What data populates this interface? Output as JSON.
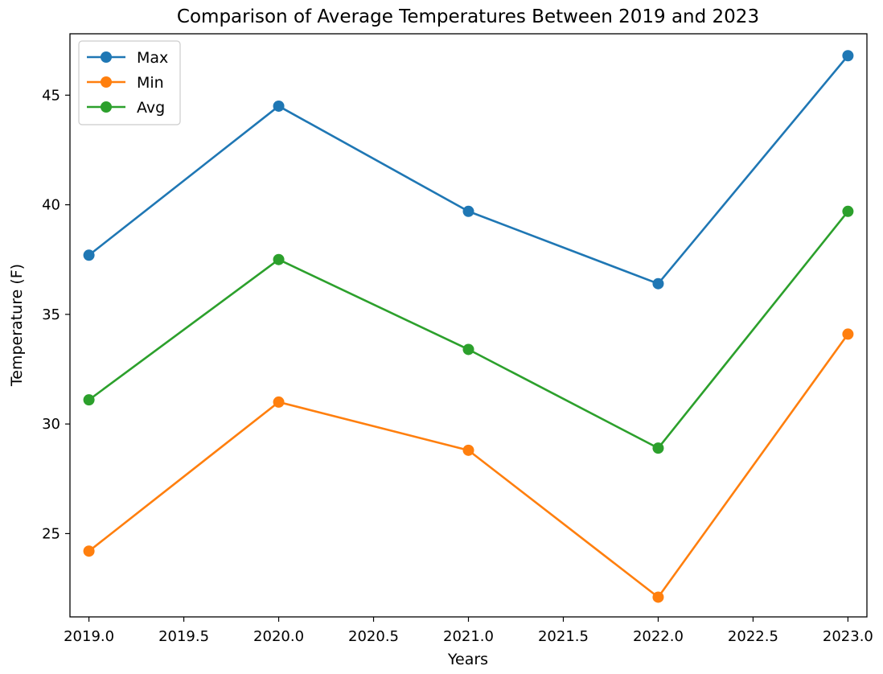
{
  "chart_data": {
    "type": "line",
    "title": "Comparison of Average Temperatures Between 2019 and 2023",
    "xlabel": "Years",
    "ylabel": "Temperature (F)",
    "x": [
      2019,
      2020,
      2021,
      2022,
      2023
    ],
    "xlim": [
      2018.9,
      2023.1
    ],
    "ylim": [
      21.2,
      47.8
    ],
    "xticks": [
      2019.0,
      2019.5,
      2020.0,
      2020.5,
      2021.0,
      2021.5,
      2022.0,
      2022.5,
      2023.0
    ],
    "xtick_labels": [
      "2019.0",
      "2019.5",
      "2020.0",
      "2020.5",
      "2021.0",
      "2021.5",
      "2022.0",
      "2022.5",
      "2023.0"
    ],
    "yticks": [
      25,
      30,
      35,
      40,
      45
    ],
    "ytick_labels": [
      "25",
      "30",
      "35",
      "40",
      "45"
    ],
    "grid": false,
    "legend_position": "top-left",
    "series": [
      {
        "name": "Max",
        "color": "#1f77b4",
        "values": [
          37.7,
          44.5,
          39.7,
          36.4,
          46.8
        ]
      },
      {
        "name": "Min",
        "color": "#ff7f0e",
        "values": [
          24.2,
          31.0,
          28.8,
          22.1,
          34.1
        ]
      },
      {
        "name": "Avg",
        "color": "#2ca02c",
        "values": [
          31.1,
          37.5,
          33.4,
          28.9,
          39.7
        ]
      }
    ]
  }
}
